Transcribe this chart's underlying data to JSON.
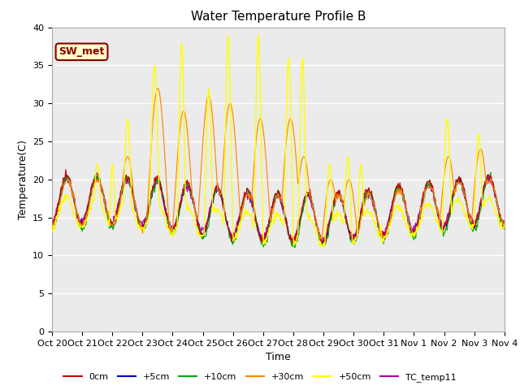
{
  "title": "Water Temperature Profile B",
  "xlabel": "Time",
  "ylabel": "Temperature(C)",
  "ylim": [
    0,
    40
  ],
  "yticks": [
    0,
    5,
    10,
    15,
    20,
    25,
    30,
    35,
    40
  ],
  "xlabels": [
    "Oct 20",
    "Oct 21",
    "Oct 22",
    "Oct 23",
    "Oct 24",
    "Oct 25",
    "Oct 26",
    "Oct 27",
    "Oct 28",
    "Oct 29",
    "Oct 30",
    "Oct 31",
    "Nov 1",
    "Nov 2",
    "Nov 3",
    "Nov 4"
  ],
  "series_colors": {
    "0cm": "#cc0000",
    "+5cm": "#0000cc",
    "+10cm": "#00aa00",
    "+30cm": "#ff8800",
    "+50cm": "#ffff00",
    "TC_temp11": "#aa00aa"
  },
  "annotation_text": "SW_met",
  "annotation_color": "#880000",
  "annotation_bg": "#ffffcc",
  "background_color": "#ebebeb",
  "grid_color": "#ffffff",
  "title_fontsize": 11,
  "axis_fontsize": 9,
  "tick_fontsize": 8,
  "legend_fontsize": 8,
  "num_points": 720,
  "days": 15
}
